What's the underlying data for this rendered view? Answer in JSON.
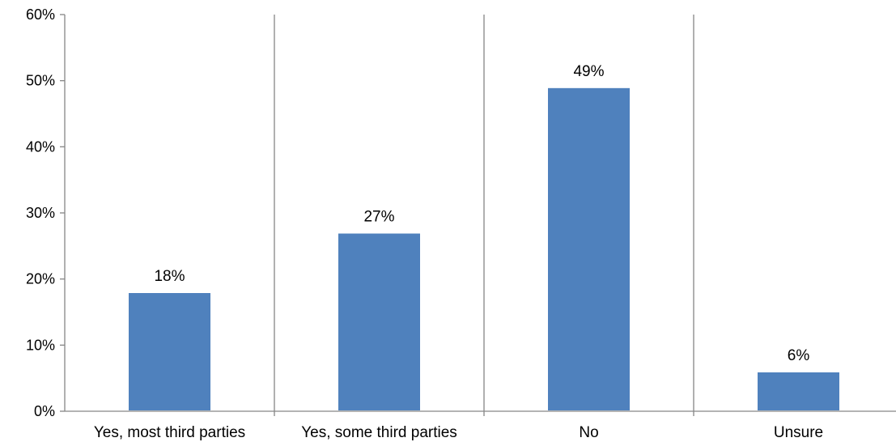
{
  "chart_data": {
    "type": "bar",
    "categories": [
      "Yes, most third parties",
      "Yes, some third parties",
      "No",
      "Unsure"
    ],
    "values": [
      18,
      27,
      49,
      6
    ],
    "data_labels": [
      "18%",
      "27%",
      "49%",
      "6%"
    ],
    "ylim": [
      0,
      60
    ],
    "yticks": [
      0,
      10,
      20,
      30,
      40,
      50,
      60
    ],
    "ytick_labels": [
      "0%",
      "10%",
      "20%",
      "30%",
      "40%",
      "50%",
      "60%"
    ],
    "grid": "vertical category separators",
    "legend": "none",
    "colors": {
      "bar": "#4F81BD",
      "bar_edge": "#FFFFFF",
      "axis": "#868686",
      "text": "#000000"
    }
  }
}
